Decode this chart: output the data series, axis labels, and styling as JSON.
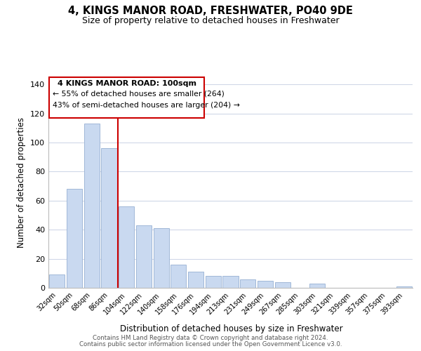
{
  "title": "4, KINGS MANOR ROAD, FRESHWATER, PO40 9DE",
  "subtitle": "Size of property relative to detached houses in Freshwater",
  "xlabel": "Distribution of detached houses by size in Freshwater",
  "ylabel": "Number of detached properties",
  "categories": [
    "32sqm",
    "50sqm",
    "68sqm",
    "86sqm",
    "104sqm",
    "122sqm",
    "140sqm",
    "158sqm",
    "176sqm",
    "194sqm",
    "213sqm",
    "231sqm",
    "249sqm",
    "267sqm",
    "285sqm",
    "303sqm",
    "321sqm",
    "339sqm",
    "357sqm",
    "375sqm",
    "393sqm"
  ],
  "values": [
    9,
    68,
    113,
    96,
    56,
    43,
    41,
    16,
    11,
    8,
    8,
    6,
    5,
    4,
    0,
    3,
    0,
    0,
    0,
    0,
    1
  ],
  "bar_color": "#c9d9f0",
  "bar_edge_color": "#a0b8d8",
  "red_line_index": 4,
  "red_line_color": "#cc0000",
  "ylim": [
    0,
    145
  ],
  "yticks": [
    0,
    20,
    40,
    60,
    80,
    100,
    120,
    140
  ],
  "annotation_title": "4 KINGS MANOR ROAD: 100sqm",
  "annotation_line1": "← 55% of detached houses are smaller (264)",
  "annotation_line2": "43% of semi-detached houses are larger (204) →",
  "annotation_box_color": "#ffffff",
  "annotation_box_edge": "#cc0000",
  "footer_line1": "Contains HM Land Registry data © Crown copyright and database right 2024.",
  "footer_line2": "Contains public sector information licensed under the Open Government Licence v3.0.",
  "background_color": "#ffffff",
  "grid_color": "#d0d8e8"
}
